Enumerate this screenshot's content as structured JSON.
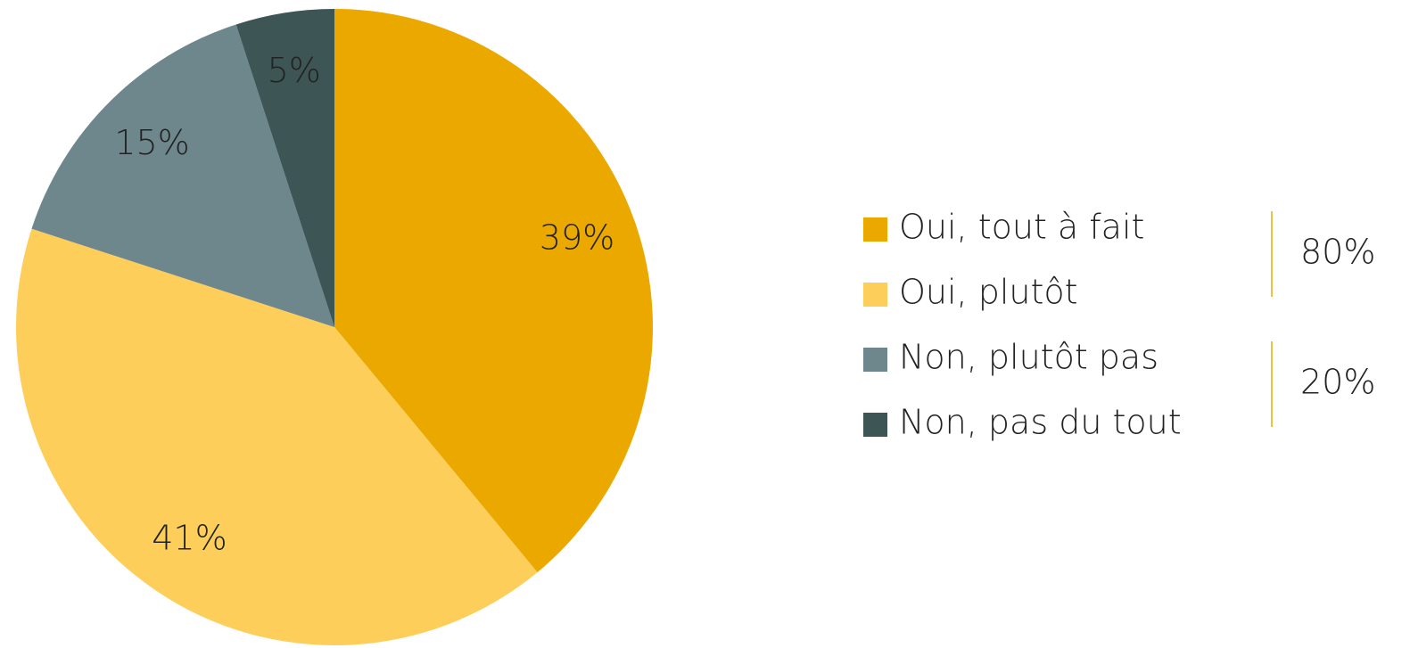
{
  "chart_data": {
    "type": "pie",
    "categories": [
      "Oui, tout à fait",
      "Oui, plutôt",
      "Non, plutôt pas",
      "Non, pas du tout"
    ],
    "values": [
      39,
      41,
      15,
      5
    ],
    "value_labels": [
      "39%",
      "41%",
      "15%",
      "5%"
    ],
    "colors": [
      "#EBA900",
      "#FDCE5A",
      "#6E878D",
      "#3E5555"
    ],
    "annotations": [
      "80%",
      "20%"
    ]
  }
}
